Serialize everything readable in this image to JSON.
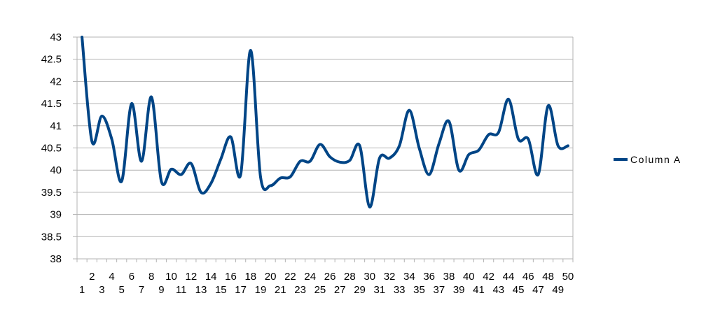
{
  "chart_data": {
    "type": "line",
    "title": "",
    "xlabel": "",
    "ylabel": "",
    "ylim": [
      38,
      43
    ],
    "yticks": [
      38,
      38.5,
      39,
      39.5,
      40,
      40.5,
      41,
      41.5,
      42,
      42.5,
      43
    ],
    "ytick_labels": [
      "38",
      "38.5",
      "39",
      "39.5",
      "40",
      "40.5",
      "41",
      "41.5",
      "42",
      "42.5",
      "43"
    ],
    "categories": [
      "1",
      "2",
      "3",
      "4",
      "5",
      "6",
      "7",
      "8",
      "9",
      "10",
      "11",
      "12",
      "13",
      "14",
      "15",
      "16",
      "17",
      "18",
      "19",
      "20",
      "21",
      "22",
      "23",
      "24",
      "25",
      "26",
      "27",
      "28",
      "29",
      "30",
      "31",
      "32",
      "33",
      "34",
      "35",
      "36",
      "37",
      "38",
      "39",
      "40",
      "41",
      "42",
      "43",
      "44",
      "45",
      "46",
      "47",
      "48",
      "49",
      "50"
    ],
    "grid": "horizontal",
    "legend_position": "right",
    "series": [
      {
        "name": "Column A",
        "color": "#004586",
        "values": [
          43.0,
          40.65,
          41.22,
          40.7,
          39.75,
          41.5,
          40.2,
          41.65,
          39.75,
          40.02,
          39.9,
          40.15,
          39.5,
          39.7,
          40.25,
          40.75,
          39.9,
          42.7,
          39.85,
          39.65,
          39.82,
          39.85,
          40.2,
          40.2,
          40.58,
          40.3,
          40.18,
          40.22,
          40.55,
          39.17,
          40.27,
          40.27,
          40.55,
          41.35,
          40.5,
          39.9,
          40.6,
          41.1,
          40.0,
          40.35,
          40.45,
          40.8,
          40.85,
          41.6,
          40.7,
          40.7,
          39.9,
          41.45,
          40.55,
          40.55
        ]
      }
    ]
  }
}
